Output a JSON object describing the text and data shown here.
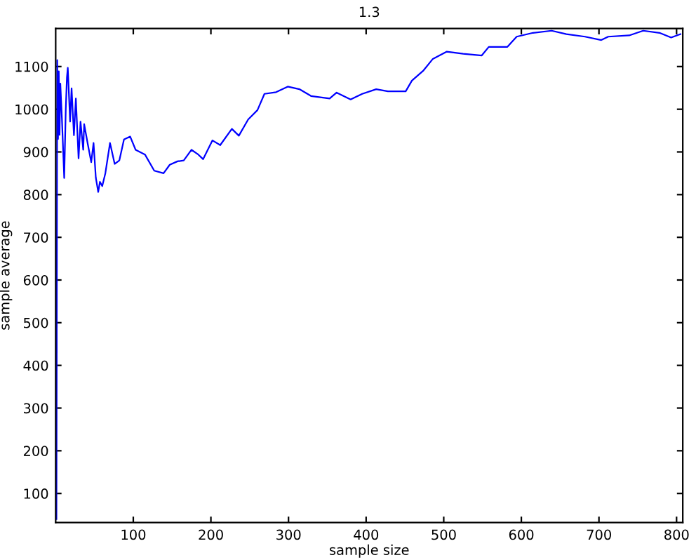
{
  "chart_data": {
    "type": "line",
    "title": "1.3",
    "xlabel": "sample size",
    "ylabel": "sample average",
    "series": [
      {
        "color": "#0000ff",
        "x": [
          1,
          2,
          3,
          4,
          5,
          6,
          8,
          11,
          13,
          14.5,
          15.6,
          18.6,
          20.5,
          23.5,
          26,
          29.5,
          32,
          35.5,
          36.7,
          41.6,
          45.8,
          48.8,
          51.7,
          54.8,
          57,
          60,
          64,
          70,
          76,
          82,
          88,
          96,
          103,
          115,
          127,
          139,
          147,
          157,
          165,
          175,
          183,
          190,
          202,
          212,
          227,
          236,
          248,
          260,
          269,
          284,
          299,
          314,
          329,
          353,
          362,
          380,
          395,
          413,
          428,
          451,
          459,
          474,
          486,
          504,
          525,
          549,
          558,
          582,
          594,
          615,
          639,
          658,
          682,
          703,
          712,
          739,
          757,
          778,
          793,
          805
        ],
        "values": [
          40,
          1115,
          930,
          1089,
          940,
          1060,
          980,
          839,
          1000,
          1075,
          1097,
          971,
          1049,
          939,
          1025,
          885,
          971,
          905,
          965,
          916,
          876,
          921,
          840,
          806,
          830,
          820,
          850,
          921,
          872,
          880,
          929,
          936,
          905,
          894,
          856,
          850,
          870,
          878,
          880,
          905,
          895,
          883,
          927,
          916,
          954,
          938,
          976,
          998,
          1036,
          1040,
          1053,
          1047,
          1031,
          1025,
          1039,
          1023,
          1036,
          1047,
          1042,
          1042,
          1067,
          1091,
          1118,
          1135,
          1130,
          1126,
          1146,
          1146,
          1170,
          1179,
          1184,
          1176,
          1170,
          1162,
          1170,
          1173,
          1184,
          1179,
          1168,
          1176
        ]
      }
    ],
    "xlim": [
      0,
      808
    ],
    "ylim": [
      32,
      1189
    ],
    "xticks": [
      100,
      200,
      300,
      400,
      500,
      600,
      700,
      800
    ],
    "yticks": [
      100,
      200,
      300,
      400,
      500,
      600,
      700,
      800,
      900,
      1000,
      1100
    ],
    "grid": false,
    "legend": false,
    "marker": "none",
    "line_style": "solid"
  }
}
